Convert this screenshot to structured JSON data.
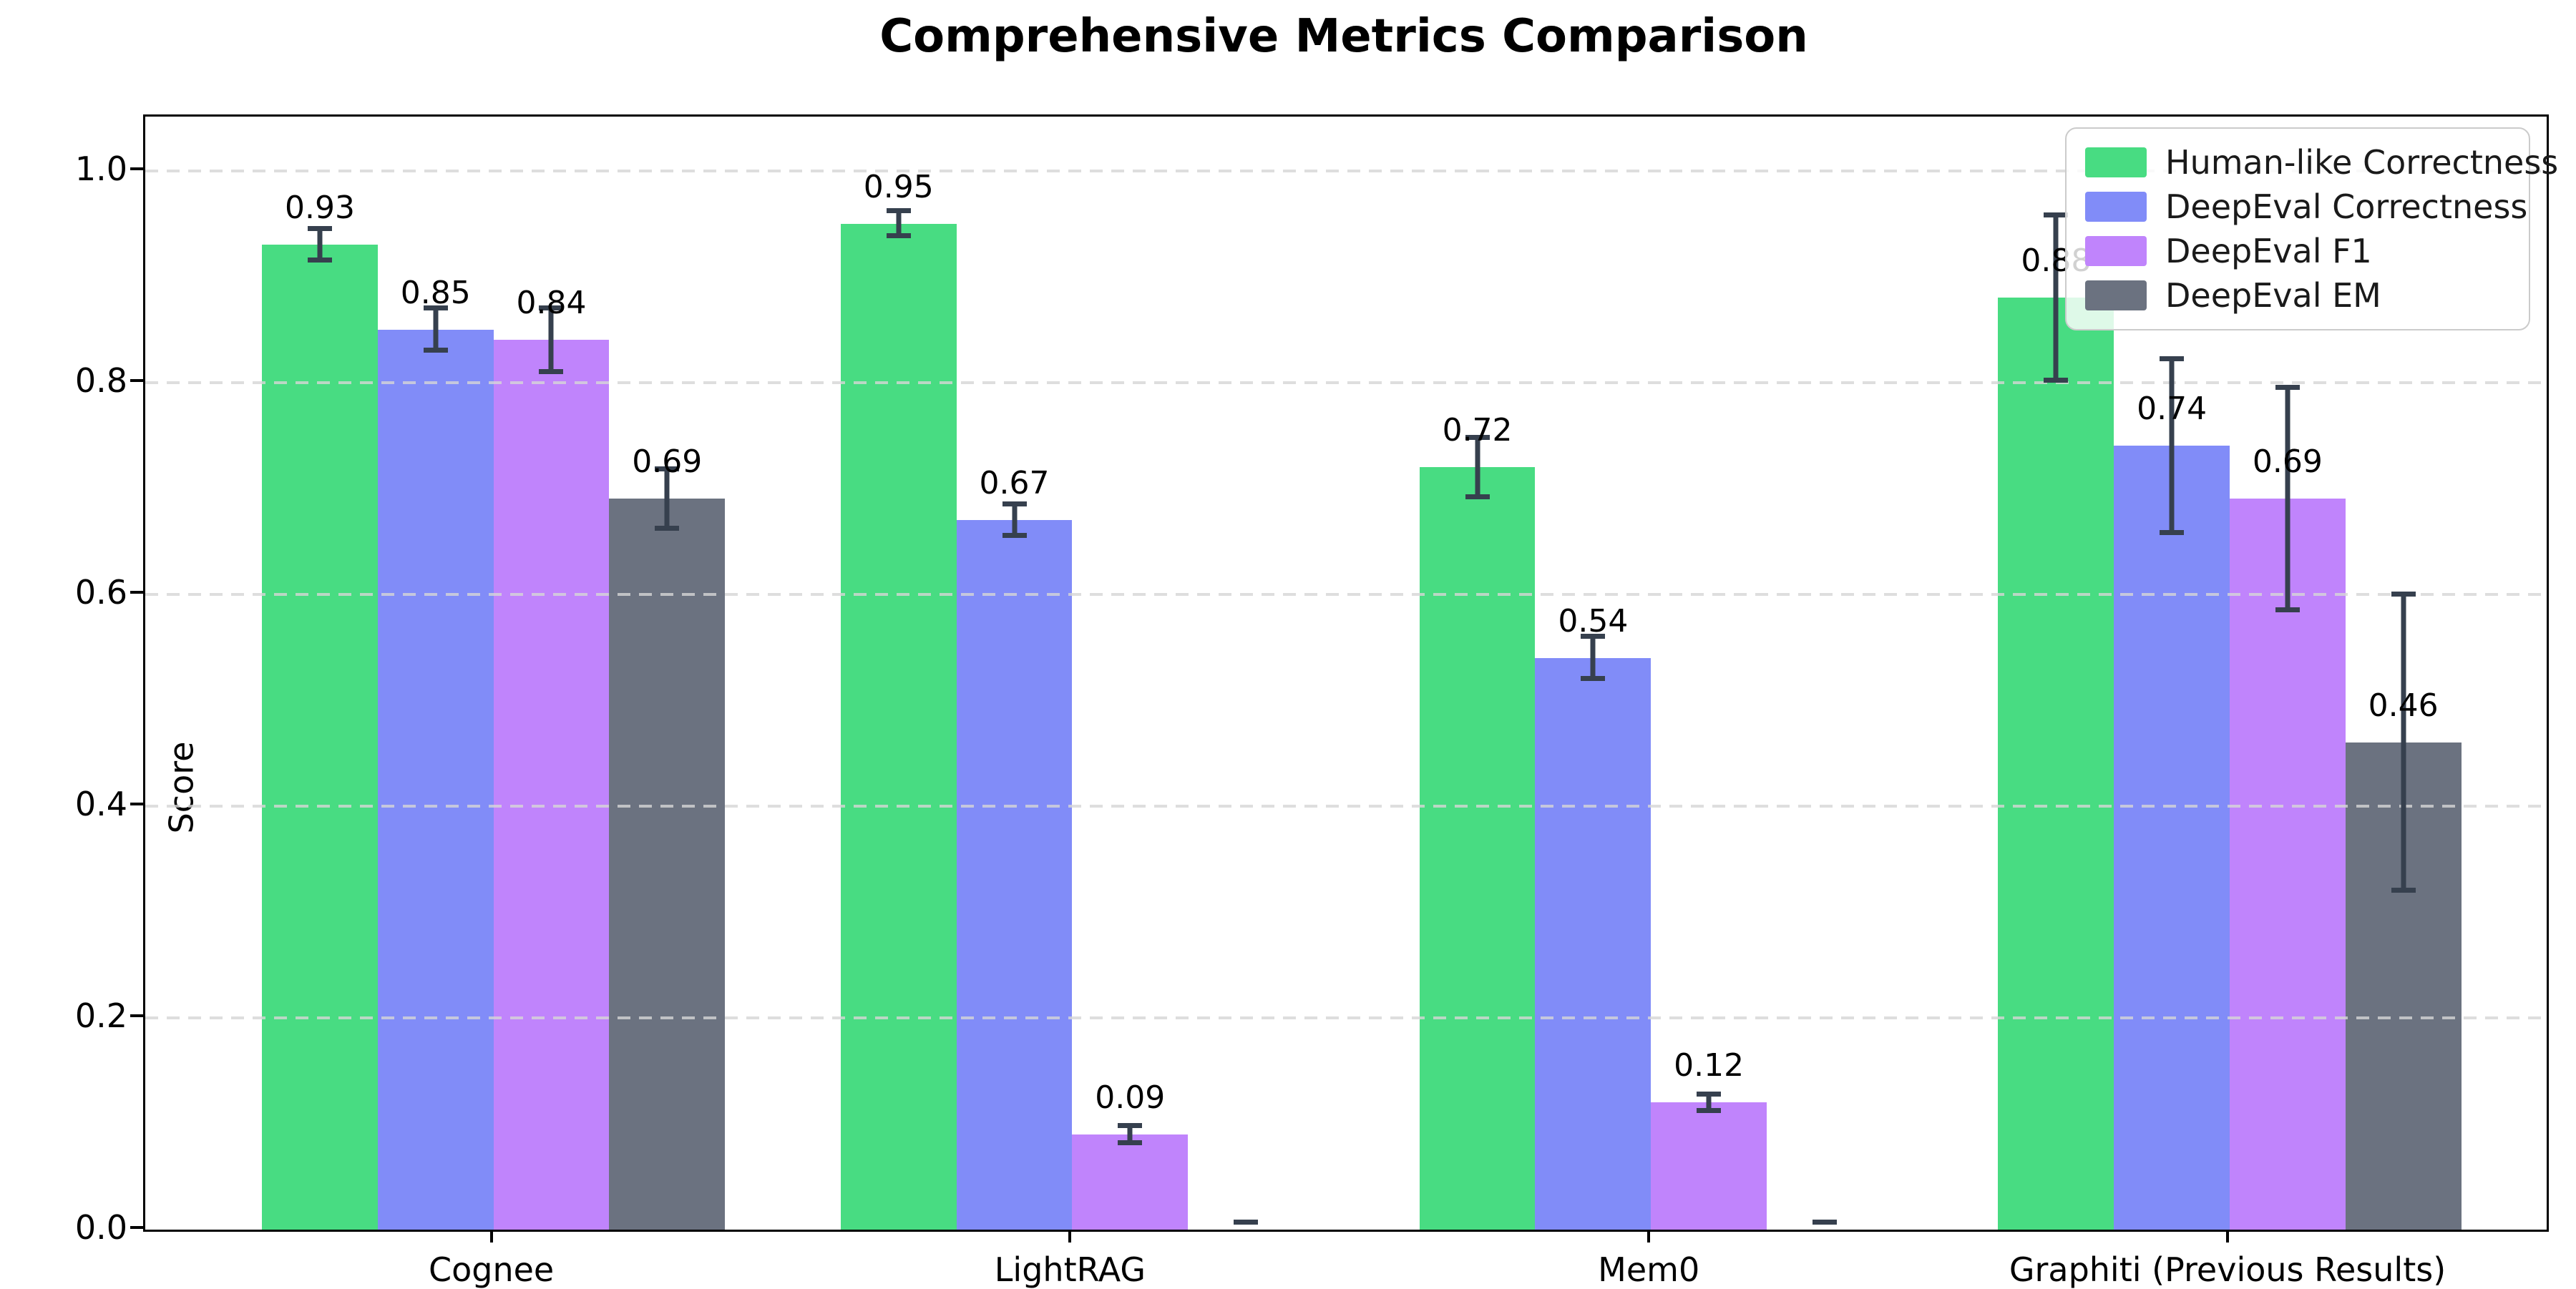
{
  "chart_data": {
    "type": "bar",
    "title": "Comprehensive Metrics Comparison",
    "xlabel": "",
    "ylabel": "Score",
    "ylim": [
      0,
      1.05
    ],
    "yticks": [
      0.0,
      0.2,
      0.4,
      0.6,
      0.8,
      1.0
    ],
    "ytick_labels": [
      "0.0",
      "0.2",
      "0.4",
      "0.6",
      "0.8",
      "1.0"
    ],
    "grid": "horizontal-dashed",
    "grid_color": "#d6d6d6",
    "legend_position": "upper right",
    "error_bar_color": "#36404e",
    "categories": [
      "Cognee",
      "LightRAG",
      "Mem0",
      "Graphiti (Previous Results)"
    ],
    "series": [
      {
        "name": "Human-like Correctness",
        "color": "#48dc82",
        "values": [
          0.93,
          0.95,
          0.72,
          0.88
        ],
        "errors": [
          0.015,
          0.012,
          0.028,
          0.078
        ],
        "value_labels": [
          "0.93",
          "0.95",
          "0.72",
          "0.88"
        ]
      },
      {
        "name": "DeepEval Correctness",
        "color": "#818cf8",
        "values": [
          0.85,
          0.67,
          0.54,
          0.74
        ],
        "errors": [
          0.02,
          0.015,
          0.02,
          0.082
        ],
        "value_labels": [
          "0.85",
          "0.67",
          "0.54",
          "0.74"
        ]
      },
      {
        "name": "DeepEval F1",
        "color": "#c084fc",
        "values": [
          0.84,
          0.09,
          0.12,
          0.69
        ],
        "errors": [
          0.03,
          0.008,
          0.008,
          0.105
        ],
        "value_labels": [
          "0.84",
          "0.09",
          "0.12",
          "0.69"
        ]
      },
      {
        "name": "DeepEval EM",
        "color": "#6b7280",
        "values": [
          0.69,
          0.0,
          0.0,
          0.46
        ],
        "errors": [
          0.028,
          0.005,
          0.005,
          0.14
        ],
        "value_labels": [
          "0.69",
          "",
          "",
          "0.46"
        ]
      }
    ]
  }
}
